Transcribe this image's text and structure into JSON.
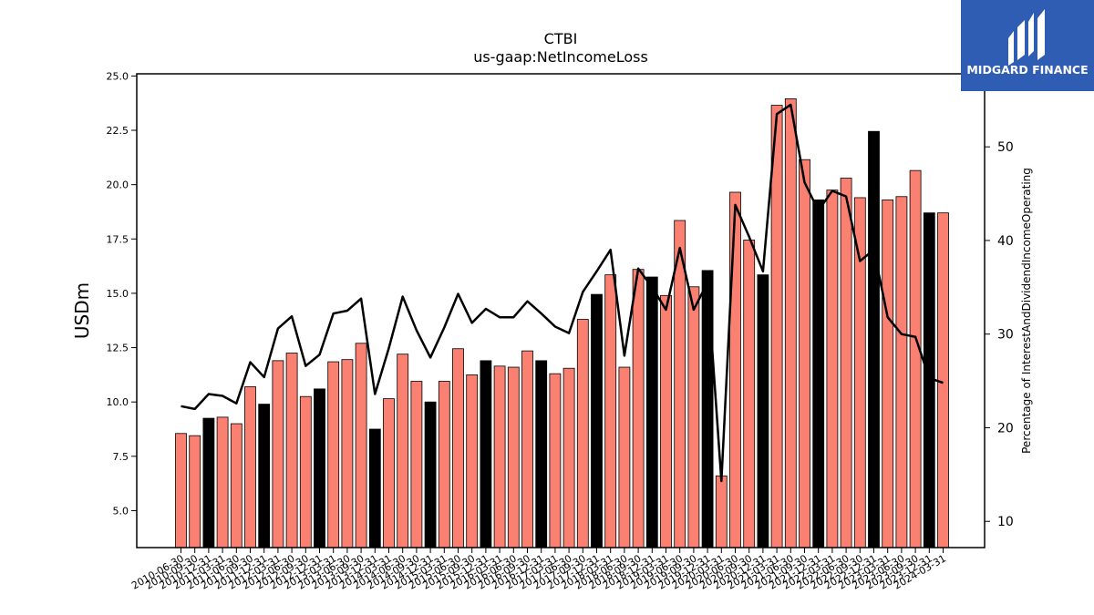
{
  "chart_data": {
    "type": "bar",
    "title": "CTBI",
    "subtitle": "us-gaap:NetIncomeLoss",
    "ylabel": "USDm",
    "y2label": "Percentage of InterestAndDividendIncomeOperating",
    "ylim": [
      3.3,
      25.1
    ],
    "y2lim": [
      7.2,
      57.8
    ],
    "yticks": [
      5.0,
      7.5,
      10.0,
      12.5,
      15.0,
      17.5,
      20.0,
      22.5,
      25.0
    ],
    "yticklabels": [
      "5.0",
      "7.5",
      "10.0",
      "12.5",
      "15.0",
      "17.5",
      "20.0",
      "22.5",
      "25.0"
    ],
    "y2ticks": [
      10,
      20,
      30,
      40,
      50
    ],
    "y2ticklabels": [
      "10",
      "20",
      "30",
      "40",
      "50"
    ],
    "categories": [
      "2010-06-30",
      "2010-09-30",
      "2010-12-31",
      "2011-03-31",
      "2011-06-30",
      "2011-09-30",
      "2011-12-31",
      "2012-03-31",
      "2012-06-30",
      "2012-09-30",
      "2012-12-31",
      "2013-03-31",
      "2013-06-30",
      "2013-09-30",
      "2013-12-31",
      "2014-03-31",
      "2014-06-30",
      "2014-09-30",
      "2014-12-31",
      "2015-03-31",
      "2015-06-30",
      "2015-09-30",
      "2015-12-31",
      "2016-03-31",
      "2016-06-30",
      "2016-09-30",
      "2016-12-31",
      "2017-03-31",
      "2017-06-30",
      "2017-09-30",
      "2017-12-31",
      "2018-03-31",
      "2018-06-30",
      "2018-09-30",
      "2018-12-31",
      "2019-03-31",
      "2019-06-30",
      "2019-09-30",
      "2019-12-31",
      "2020-03-31",
      "2020-06-30",
      "2020-09-30",
      "2020-12-31",
      "2021-03-31",
      "2021-06-30",
      "2021-09-30",
      "2021-12-31",
      "2022-03-31",
      "2022-06-30",
      "2022-09-30",
      "2022-12-31",
      "2023-03-31",
      "2023-06-30",
      "2023-09-30",
      "2023-12-31",
      "2024-03-31"
    ],
    "series": [
      {
        "type": "bar",
        "values": [
          8.55,
          8.45,
          9.25,
          9.3,
          9.0,
          10.7,
          9.9,
          11.9,
          12.25,
          10.25,
          10.6,
          11.85,
          11.95,
          12.7,
          8.75,
          10.15,
          12.2,
          10.95,
          10.0,
          10.95,
          12.45,
          11.25,
          11.9,
          11.65,
          11.6,
          12.35,
          11.9,
          11.3,
          11.55,
          13.8,
          14.95,
          15.85,
          11.6,
          16.1,
          15.75,
          14.9,
          18.35,
          15.3,
          16.05,
          6.6,
          19.65,
          17.45,
          15.85,
          23.65,
          23.95,
          21.15,
          19.3,
          19.75,
          20.3,
          19.4,
          22.45,
          19.3,
          19.45,
          20.65,
          18.7,
          18.7
        ],
        "year_end": [
          false,
          false,
          true,
          false,
          false,
          false,
          true,
          false,
          false,
          false,
          true,
          false,
          false,
          false,
          true,
          false,
          false,
          false,
          true,
          false,
          false,
          false,
          true,
          false,
          false,
          false,
          true,
          false,
          false,
          false,
          true,
          false,
          false,
          false,
          true,
          false,
          false,
          false,
          true,
          false,
          false,
          false,
          true,
          false,
          false,
          false,
          true,
          false,
          false,
          false,
          true,
          false,
          false,
          false,
          true,
          false
        ],
        "color": "#fa8072",
        "year_end_color": "#000000"
      },
      {
        "type": "line",
        "axis": "right",
        "values": [
          22.3,
          22.0,
          23.6,
          23.4,
          22.6,
          27.0,
          25.4,
          30.6,
          31.9,
          26.6,
          27.8,
          32.2,
          32.5,
          33.8,
          23.6,
          28.5,
          34.0,
          30.4,
          27.5,
          30.7,
          34.3,
          31.2,
          32.7,
          31.8,
          31.8,
          33.5,
          32.2,
          30.8,
          30.1,
          34.5,
          36.7,
          39.0,
          27.7,
          37.0,
          35.0,
          32.6,
          39.2,
          32.6,
          35.5,
          14.3,
          43.8,
          40.4,
          36.7,
          53.5,
          54.5,
          46.2,
          43.2,
          45.3,
          44.7,
          37.8,
          39.0,
          31.8,
          30.0,
          29.7,
          25.3,
          24.8
        ],
        "color": "#000000"
      }
    ],
    "grid": false,
    "legend": "none"
  },
  "logo": {
    "text": "MIDGARD FINANCE",
    "bg": "#2f5db4"
  }
}
